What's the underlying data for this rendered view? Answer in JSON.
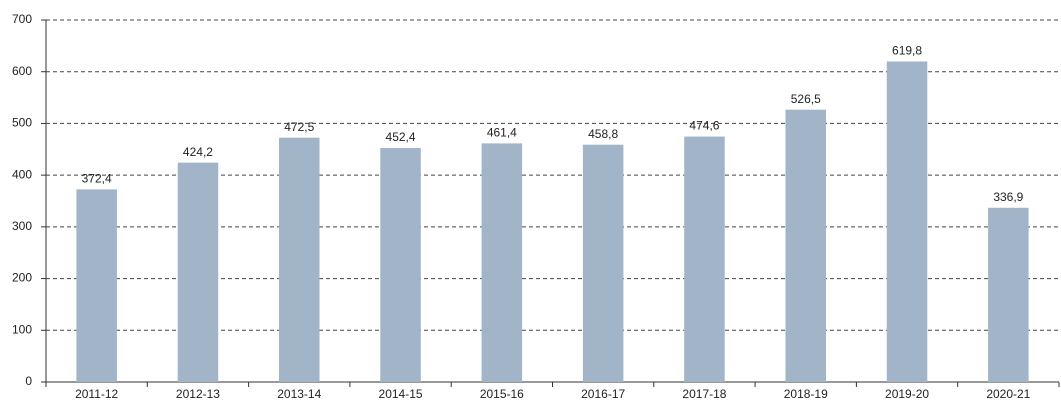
{
  "chart_data": {
    "type": "bar",
    "categories": [
      "2011-12",
      "2012-13",
      "2013-14",
      "2014-15",
      "2015-16",
      "2016-17",
      "2017-18",
      "2018-19",
      "2019-20",
      "2020-21"
    ],
    "values": [
      372.4,
      424.2,
      472.5,
      452.4,
      461.4,
      458.8,
      474.6,
      526.5,
      619.8,
      336.9
    ],
    "value_labels": [
      "372,4",
      "424,2",
      "472,5",
      "452,4",
      "461,4",
      "458,8",
      "474,6",
      "526,5",
      "619,8",
      "336,9"
    ],
    "color": "#a2b4c8",
    "ylim": [
      0,
      700
    ],
    "yticks": [
      0,
      100,
      200,
      300,
      400,
      500,
      600,
      700
    ],
    "grid": true
  }
}
